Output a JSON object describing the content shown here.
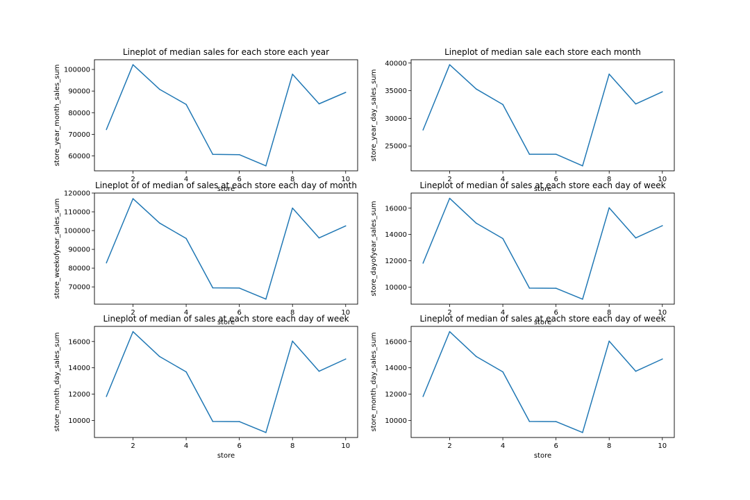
{
  "figure": {
    "background": "#ffffff",
    "line_color": "#1f77b4"
  },
  "chart_data": [
    {
      "type": "line",
      "title": "Lineplot of median sales for each store each year",
      "xlabel": "store",
      "ylabel": "store_year_month_sales_sum",
      "x": [
        1,
        2,
        3,
        4,
        5,
        6,
        7,
        8,
        9,
        10
      ],
      "series": [
        {
          "values": [
            72200,
            102200,
            90800,
            83800,
            60700,
            60600,
            55400,
            97800,
            84100,
            89400
          ]
        }
      ],
      "xlim": [
        0.55,
        10.45
      ],
      "ylim": [
        53100,
        104500
      ],
      "xticks": [
        2,
        4,
        6,
        8,
        10
      ],
      "yticks": [
        60000,
        70000,
        80000,
        90000,
        100000
      ],
      "grid": false,
      "legend": "none"
    },
    {
      "type": "line",
      "title": "Lineplot of median sale each store each month",
      "xlabel": "store",
      "ylabel": "store_year_day_sales_sum",
      "x": [
        1,
        2,
        3,
        4,
        5,
        6,
        7,
        8,
        9,
        10
      ],
      "series": [
        {
          "values": [
            27900,
            39700,
            35300,
            32500,
            23500,
            23500,
            21400,
            38000,
            32600,
            34800
          ]
        }
      ],
      "xlim": [
        0.55,
        10.45
      ],
      "ylim": [
        20500,
        40600
      ],
      "xticks": [
        2,
        4,
        6,
        8,
        10
      ],
      "yticks": [
        25000,
        30000,
        35000,
        40000
      ],
      "grid": false,
      "legend": "none"
    },
    {
      "type": "line",
      "title": "Lineplot of of median of sales at each store each day of month",
      "xlabel": "store",
      "ylabel": "store_weekofyear_sales_sum",
      "x": [
        1,
        2,
        3,
        4,
        5,
        6,
        7,
        8,
        9,
        10
      ],
      "series": [
        {
          "values": [
            82800,
            117000,
            104000,
            95800,
            69500,
            69400,
            63500,
            112000,
            96100,
            102500
          ]
        }
      ],
      "xlim": [
        0.55,
        10.45
      ],
      "ylim": [
        60800,
        120000
      ],
      "xticks": [
        2,
        4,
        6,
        8,
        10
      ],
      "yticks": [
        70000,
        80000,
        90000,
        100000,
        110000,
        120000
      ],
      "grid": false,
      "legend": "none"
    },
    {
      "type": "line",
      "title": "Lineplot of median of sales at each store each day of week",
      "xlabel": "store",
      "ylabel": "store_dayofyear_sales_sum",
      "x": [
        1,
        2,
        3,
        4,
        5,
        6,
        7,
        8,
        9,
        10
      ],
      "series": [
        {
          "values": [
            11820,
            16750,
            14860,
            13690,
            9920,
            9910,
            9080,
            16030,
            13740,
            14670
          ]
        }
      ],
      "xlim": [
        0.55,
        10.45
      ],
      "ylim": [
        8700,
        17150
      ],
      "xticks": [
        2,
        4,
        6,
        8,
        10
      ],
      "yticks": [
        10000,
        12000,
        14000,
        16000
      ],
      "grid": false,
      "legend": "none"
    },
    {
      "type": "line",
      "title": "Lineplot of median of sales at each store each day of week",
      "xlabel": "store",
      "ylabel": "store_month_day_sales_sum",
      "x": [
        1,
        2,
        3,
        4,
        5,
        6,
        7,
        8,
        9,
        10
      ],
      "series": [
        {
          "values": [
            11820,
            16750,
            14860,
            13690,
            9920,
            9910,
            9080,
            16030,
            13740,
            14670
          ]
        }
      ],
      "xlim": [
        0.55,
        10.45
      ],
      "ylim": [
        8700,
        17150
      ],
      "xticks": [
        2,
        4,
        6,
        8,
        10
      ],
      "yticks": [
        10000,
        12000,
        14000,
        16000
      ],
      "grid": false,
      "legend": "none"
    },
    {
      "type": "line",
      "title": "Lineplot of median of sales at each store each day of week",
      "xlabel": "store",
      "ylabel": "store_month_day_sales_sum",
      "x": [
        1,
        2,
        3,
        4,
        5,
        6,
        7,
        8,
        9,
        10
      ],
      "series": [
        {
          "values": [
            11820,
            16750,
            14860,
            13690,
            9920,
            9910,
            9080,
            16030,
            13740,
            14670
          ]
        }
      ],
      "xlim": [
        0.55,
        10.45
      ],
      "ylim": [
        8700,
        17150
      ],
      "xticks": [
        2,
        4,
        6,
        8,
        10
      ],
      "yticks": [
        10000,
        12000,
        14000,
        16000
      ],
      "grid": false,
      "legend": "none"
    }
  ]
}
